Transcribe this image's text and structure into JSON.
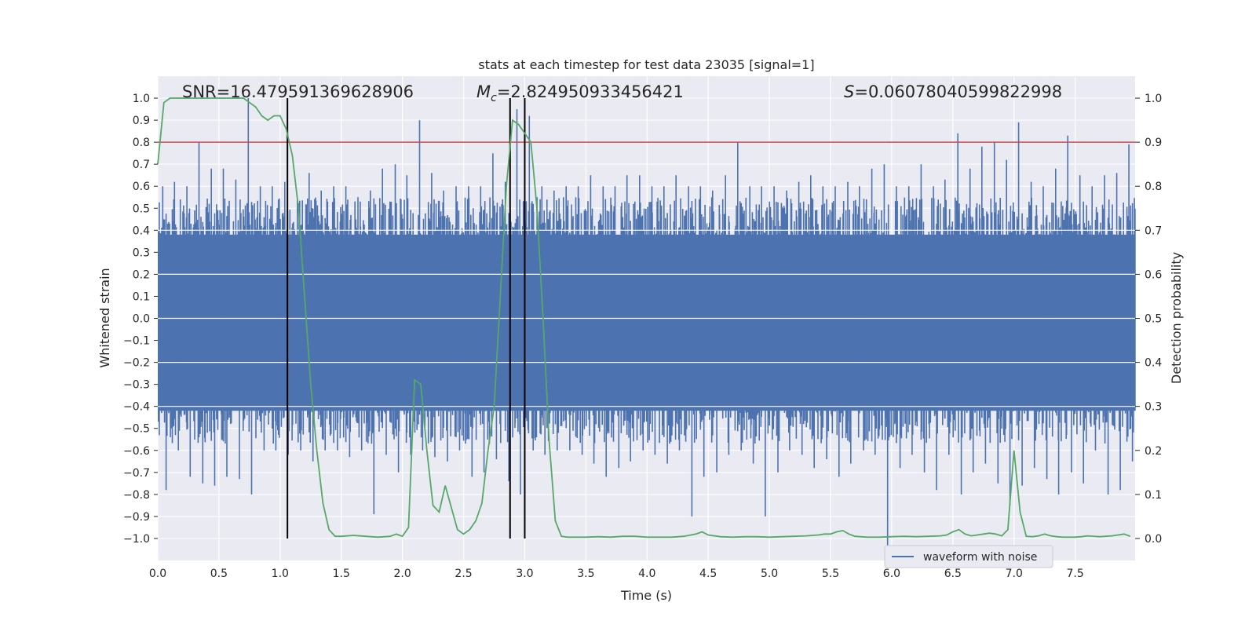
{
  "chart_data": {
    "type": "line",
    "title": "stats at each timestep for test data 23035 [signal=1]",
    "xlabel": "Time (s)",
    "ylabel_left": "Whitened strain",
    "ylabel_right": "Detection probability",
    "xlim": [
      0.0,
      7.99
    ],
    "ylim_left": [
      -1.1,
      1.1
    ],
    "ylim_right": [
      -0.05,
      1.05
    ],
    "x_ticks": [
      "0.0",
      "0.5",
      "1.0",
      "1.5",
      "2.0",
      "2.5",
      "3.0",
      "3.5",
      "4.0",
      "4.5",
      "5.0",
      "5.5",
      "6.0",
      "6.5",
      "7.0",
      "7.5"
    ],
    "y_left_ticks": [
      "1.0",
      "0.9",
      "0.8",
      "0.7",
      "0.6",
      "0.5",
      "0.4",
      "0.3",
      "0.2",
      "0.1",
      "0.0",
      "-0.1",
      "-0.2",
      "-0.3",
      "-0.4",
      "-0.5",
      "-0.6",
      "-0.7",
      "-0.8",
      "-0.9",
      "-1.0"
    ],
    "y_right_ticks": [
      "1.0",
      "0.9",
      "0.8",
      "0.7",
      "0.6",
      "0.5",
      "0.4",
      "0.3",
      "0.2",
      "0.1",
      "0.0"
    ],
    "grid": true,
    "legend": {
      "position": "bottom-right",
      "entries": [
        "waveform with noise"
      ]
    },
    "annotations": {
      "snr": "SNR=16.479591369628906",
      "mc_symbol": "M",
      "mc_sub": "c",
      "mc_value": "=2.824950933456421",
      "s_symbol": "S",
      "s_value": "=0.06078040599822998"
    },
    "threshold": {
      "axis": "right",
      "value": 0.9,
      "color": "#c44e52"
    },
    "vlines": [
      1.06,
      2.88,
      3.0
    ],
    "series": [
      {
        "name": "waveform with noise",
        "axis": "left",
        "color": "#4c72b0",
        "note": "dense noisy strain; envelope per 0.1 s",
        "envelope_x": [
          0.0,
          0.1,
          0.2,
          0.3,
          0.4,
          0.5,
          0.6,
          0.7,
          0.8,
          0.9,
          1.0,
          1.1,
          1.2,
          1.3,
          1.4,
          1.5,
          1.6,
          1.7,
          1.8,
          1.9,
          2.0,
          2.1,
          2.2,
          2.3,
          2.4,
          2.5,
          2.6,
          2.7,
          2.8,
          2.9,
          3.0,
          3.1,
          3.2,
          3.3,
          3.4,
          3.5,
          3.6,
          3.7,
          3.8,
          3.9,
          4.0,
          4.1,
          4.2,
          4.3,
          4.4,
          4.5,
          4.6,
          4.7,
          4.8,
          4.9,
          5.0,
          5.1,
          5.2,
          5.3,
          5.4,
          5.5,
          5.6,
          5.7,
          5.8,
          5.9,
          6.0,
          6.1,
          6.2,
          6.3,
          6.4,
          6.5,
          6.6,
          6.7,
          6.8,
          6.9,
          7.0,
          7.1,
          7.2,
          7.3,
          7.4,
          7.5,
          7.6,
          7.7,
          7.8,
          7.9
        ],
        "envelope_max": [
          0.6,
          0.62,
          0.6,
          0.8,
          0.68,
          0.68,
          0.63,
          1.0,
          0.6,
          0.6,
          0.62,
          0.55,
          0.66,
          0.58,
          0.6,
          0.6,
          0.55,
          0.58,
          0.68,
          0.7,
          0.65,
          0.9,
          0.66,
          0.58,
          0.6,
          0.6,
          0.6,
          0.75,
          0.62,
          0.95,
          0.92,
          0.6,
          0.58,
          0.6,
          0.6,
          0.65,
          0.6,
          0.6,
          0.65,
          0.65,
          0.6,
          0.6,
          0.65,
          0.6,
          0.6,
          0.58,
          0.65,
          0.8,
          0.6,
          0.6,
          0.6,
          0.58,
          0.62,
          0.65,
          0.6,
          0.6,
          0.62,
          0.6,
          0.68,
          0.7,
          0.6,
          0.6,
          0.7,
          0.6,
          0.63,
          0.84,
          0.68,
          0.78,
          0.8,
          0.72,
          0.89,
          0.62,
          0.6,
          0.68,
          0.83,
          0.65,
          0.6,
          0.65,
          0.66,
          0.79
        ],
        "envelope_min": [
          -0.78,
          -0.6,
          -0.72,
          -0.75,
          -0.76,
          -0.72,
          -0.73,
          -0.8,
          -0.6,
          -0.6,
          -0.62,
          -0.6,
          -0.65,
          -0.6,
          -0.6,
          -0.63,
          -0.6,
          -0.89,
          -0.62,
          -0.7,
          -0.62,
          -0.6,
          -0.63,
          -0.65,
          -0.6,
          -0.72,
          -0.7,
          -0.64,
          -0.74,
          -0.8,
          -0.6,
          -0.62,
          -0.6,
          -0.6,
          -0.62,
          -0.66,
          -0.72,
          -0.68,
          -0.65,
          -0.6,
          -0.62,
          -0.66,
          -0.6,
          -0.9,
          -0.72,
          -0.7,
          -0.62,
          -0.6,
          -0.66,
          -0.9,
          -0.7,
          -0.6,
          -0.62,
          -0.68,
          -0.64,
          -0.72,
          -0.66,
          -0.6,
          -0.62,
          -1.05,
          -0.68,
          -0.62,
          -0.7,
          -0.78,
          -0.62,
          -0.8,
          -0.7,
          -0.66,
          -0.75,
          -0.85,
          -0.76,
          -0.68,
          -0.73,
          -0.8,
          -0.7,
          -0.75,
          -0.6,
          -0.8,
          -0.78,
          -0.65
        ]
      },
      {
        "name": "detection probability",
        "axis": "right",
        "color": "#55a868",
        "x": [
          0.0,
          0.05,
          0.1,
          0.2,
          0.3,
          0.4,
          0.5,
          0.6,
          0.7,
          0.75,
          0.8,
          0.85,
          0.9,
          0.95,
          1.0,
          1.05,
          1.1,
          1.15,
          1.2,
          1.25,
          1.3,
          1.35,
          1.4,
          1.45,
          1.5,
          1.6,
          1.7,
          1.8,
          1.9,
          1.95,
          2.0,
          2.05,
          2.1,
          2.15,
          2.2,
          2.25,
          2.3,
          2.35,
          2.4,
          2.45,
          2.5,
          2.55,
          2.6,
          2.65,
          2.7,
          2.75,
          2.8,
          2.85,
          2.9,
          2.95,
          3.0,
          3.05,
          3.1,
          3.15,
          3.2,
          3.25,
          3.3,
          3.35,
          3.4,
          3.5,
          3.6,
          3.7,
          3.8,
          3.9,
          4.0,
          4.1,
          4.2,
          4.3,
          4.4,
          4.45,
          4.5,
          4.6,
          4.7,
          4.8,
          4.9,
          5.0,
          5.1,
          5.2,
          5.3,
          5.4,
          5.45,
          5.5,
          5.55,
          5.6,
          5.65,
          5.7,
          5.8,
          5.9,
          6.0,
          6.1,
          6.2,
          6.3,
          6.4,
          6.45,
          6.5,
          6.55,
          6.6,
          6.65,
          6.7,
          6.75,
          6.8,
          6.85,
          6.9,
          6.95,
          7.0,
          7.05,
          7.1,
          7.15,
          7.2,
          7.25,
          7.3,
          7.35,
          7.4,
          7.5,
          7.55,
          7.6,
          7.7,
          7.8,
          7.85,
          7.9,
          7.95
        ],
        "y": [
          0.85,
          0.99,
          1.0,
          1.0,
          1.0,
          1.0,
          1.0,
          1.0,
          1.0,
          0.99,
          0.98,
          0.96,
          0.95,
          0.96,
          0.96,
          0.93,
          0.87,
          0.75,
          0.55,
          0.35,
          0.2,
          0.08,
          0.02,
          0.005,
          0.005,
          0.007,
          0.005,
          0.003,
          0.005,
          0.01,
          0.005,
          0.025,
          0.36,
          0.35,
          0.2,
          0.075,
          0.06,
          0.12,
          0.07,
          0.02,
          0.01,
          0.02,
          0.04,
          0.08,
          0.2,
          0.3,
          0.55,
          0.8,
          0.95,
          0.94,
          0.92,
          0.9,
          0.75,
          0.5,
          0.22,
          0.04,
          0.005,
          0.003,
          0.003,
          0.003,
          0.004,
          0.003,
          0.005,
          0.005,
          0.003,
          0.003,
          0.003,
          0.005,
          0.01,
          0.015,
          0.008,
          0.004,
          0.003,
          0.004,
          0.004,
          0.003,
          0.004,
          0.005,
          0.006,
          0.008,
          0.01,
          0.01,
          0.015,
          0.018,
          0.01,
          0.005,
          0.003,
          0.003,
          0.004,
          0.005,
          0.004,
          0.005,
          0.006,
          0.008,
          0.015,
          0.02,
          0.01,
          0.006,
          0.008,
          0.01,
          0.012,
          0.01,
          0.006,
          0.02,
          0.2,
          0.06,
          0.005,
          0.004,
          0.006,
          0.01,
          0.006,
          0.004,
          0.003,
          0.003,
          0.004,
          0.006,
          0.004,
          0.006,
          0.008,
          0.01,
          0.005
        ]
      }
    ]
  }
}
